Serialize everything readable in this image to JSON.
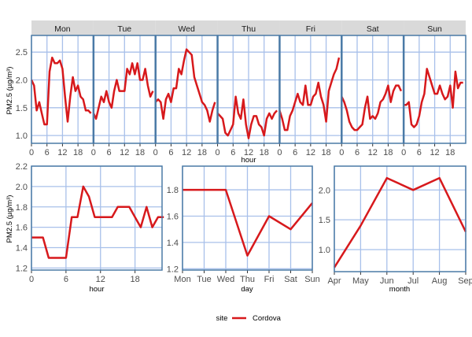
{
  "colors": {
    "series": "#d7191c",
    "grid": "#a8c0ea",
    "frame": "#4a7aa6",
    "strip_bg": "#d9d9d9"
  },
  "legend": {
    "title": "site",
    "entry": "Cordova",
    "placement": "bottom"
  },
  "chart_data": [
    {
      "type": "line",
      "panel": "day-hour",
      "ylabel": "PM2.5 (µg/m³)",
      "xlabel": "hour",
      "ylim": [
        0.86,
        2.8
      ],
      "yticks": [
        1.0,
        1.5,
        2.0,
        2.5
      ],
      "xticks": [
        0,
        6,
        12,
        18
      ],
      "grid": true,
      "facets": [
        "Mon",
        "Tue",
        "Wed",
        "Thu",
        "Fri",
        "Sat",
        "Sun"
      ],
      "series": [
        {
          "name": "Cordova",
          "values": {
            "Mon": [
              2.0,
              1.9,
              1.45,
              1.6,
              1.4,
              1.2,
              1.2,
              2.15,
              2.4,
              2.3,
              2.3,
              2.35,
              2.2,
              1.7,
              1.25,
              1.7,
              2.05,
              1.8,
              1.9,
              1.7,
              1.65,
              1.45,
              1.45,
              1.4
            ],
            "Tue": [
              1.4,
              1.3,
              1.5,
              1.7,
              1.6,
              1.8,
              1.6,
              1.5,
              1.8,
              2.0,
              1.8,
              1.8,
              1.8,
              2.2,
              2.1,
              2.3,
              2.1,
              2.3,
              2.0,
              2.0,
              2.2,
              1.9,
              1.7,
              1.8
            ],
            "Wed": [
              1.6,
              1.65,
              1.6,
              1.3,
              1.65,
              1.75,
              1.6,
              1.85,
              1.85,
              2.2,
              2.1,
              2.35,
              2.55,
              2.5,
              2.45,
              2.05,
              1.9,
              1.75,
              1.6,
              1.55,
              1.45,
              1.25,
              1.45,
              1.6
            ],
            "Thu": [
              1.4,
              1.35,
              1.3,
              1.05,
              1.0,
              1.1,
              1.2,
              1.7,
              1.4,
              1.3,
              1.65,
              1.2,
              0.95,
              1.2,
              1.35,
              1.35,
              1.2,
              1.15,
              1.0,
              1.3,
              1.4,
              1.3,
              1.4,
              1.45
            ],
            "Fri": [
              1.45,
              1.3,
              1.1,
              1.1,
              1.35,
              1.45,
              1.6,
              1.75,
              1.6,
              1.55,
              1.9,
              1.55,
              1.55,
              1.7,
              1.75,
              1.95,
              1.7,
              1.55,
              1.25,
              1.8,
              1.95,
              2.1,
              2.2,
              2.4
            ],
            "Sat": [
              1.7,
              1.6,
              1.45,
              1.25,
              1.15,
              1.1,
              1.1,
              1.15,
              1.2,
              1.5,
              1.7,
              1.3,
              1.35,
              1.3,
              1.4,
              1.6,
              1.65,
              1.75,
              1.9,
              1.6,
              1.8,
              1.9,
              1.9,
              1.8
            ],
            "Sun": [
              1.55,
              1.55,
              1.6,
              1.2,
              1.15,
              1.2,
              1.35,
              1.6,
              1.75,
              2.2,
              2.05,
              1.9,
              1.75,
              1.75,
              1.9,
              1.75,
              1.65,
              1.7,
              1.9,
              1.5,
              2.15,
              1.85,
              1.95,
              1.95
            ]
          }
        }
      ]
    },
    {
      "type": "line",
      "panel": "hour",
      "ylabel": "PM2.5 (µg/m³)",
      "xlabel": "hour",
      "ylim": [
        1.18,
        2.2
      ],
      "yticks": [
        1.2,
        1.4,
        1.6,
        1.8,
        2.0,
        2.2
      ],
      "xticks": [
        0,
        6,
        12,
        18
      ],
      "grid": true,
      "x": [
        0,
        1,
        2,
        3,
        4,
        5,
        6,
        7,
        8,
        9,
        10,
        11,
        12,
        13,
        14,
        15,
        16,
        17,
        18,
        19,
        20,
        21,
        22,
        23
      ],
      "series": [
        {
          "name": "Cordova",
          "values": [
            1.5,
            1.5,
            1.5,
            1.3,
            1.3,
            1.3,
            1.3,
            1.7,
            1.7,
            2.0,
            1.9,
            1.7,
            1.7,
            1.7,
            1.7,
            1.8,
            1.8,
            1.8,
            1.7,
            1.6,
            1.8,
            1.6,
            1.7,
            1.7
          ]
        }
      ]
    },
    {
      "type": "line",
      "panel": "day",
      "xlabel": "day",
      "ylim": [
        1.19,
        1.98
      ],
      "yticks": [
        1.2,
        1.4,
        1.6,
        1.8
      ],
      "grid": true,
      "categories": [
        "Mon",
        "Tue",
        "Wed",
        "Thu",
        "Fri",
        "Sat",
        "Sun"
      ],
      "series": [
        {
          "name": "Cordova",
          "values": [
            1.8,
            1.8,
            1.8,
            1.3,
            1.6,
            1.5,
            1.7
          ]
        }
      ]
    },
    {
      "type": "line",
      "panel": "month",
      "xlabel": "month",
      "ylim": [
        0.63,
        2.4
      ],
      "yticks": [
        1.0,
        1.5,
        2.0
      ],
      "grid": true,
      "categories": [
        "Apr",
        "May",
        "Jun",
        "Jul",
        "Aug",
        "Sep"
      ],
      "series": [
        {
          "name": "Cordova",
          "values": [
            0.7,
            1.4,
            2.2,
            2.0,
            2.2,
            1.3
          ]
        }
      ]
    }
  ]
}
